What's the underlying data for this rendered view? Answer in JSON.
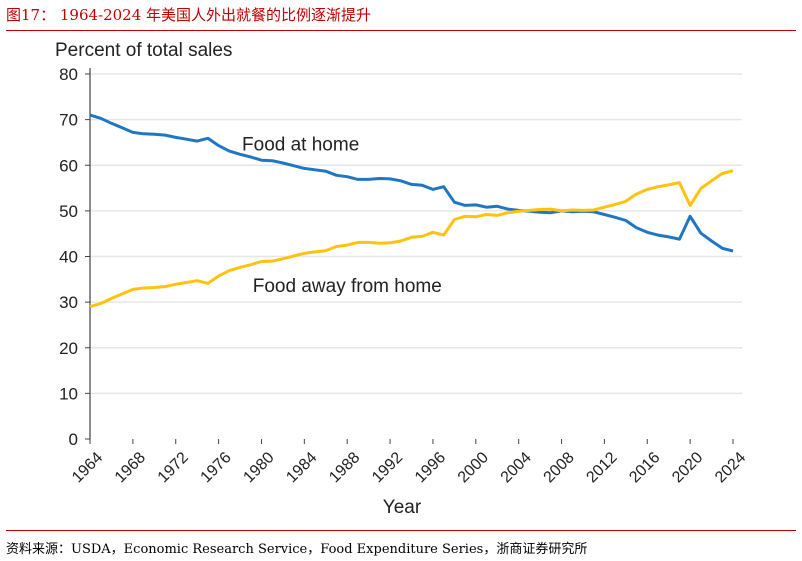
{
  "title": "图17：  1964-2024 年美国人外出就餐的比例逐渐提升",
  "source": "资料来源：USDA，Economic Research Service，Food Expenditure Series，浙商证券研究所",
  "chart_data": {
    "type": "line",
    "ylabel": "Percent of total sales",
    "xlabel": "Year",
    "ylim": [
      0,
      80
    ],
    "xlim": [
      1964,
      2024
    ],
    "yticks": [
      0,
      10,
      20,
      30,
      40,
      50,
      60,
      70,
      80
    ],
    "xticks": [
      1964,
      1968,
      1972,
      1976,
      1980,
      1984,
      1988,
      1992,
      1996,
      2000,
      2004,
      2008,
      2012,
      2016,
      2020,
      2024
    ],
    "grid": "horizontal",
    "x": [
      1964,
      1965,
      1966,
      1967,
      1968,
      1969,
      1970,
      1971,
      1972,
      1973,
      1974,
      1975,
      1976,
      1977,
      1978,
      1979,
      1980,
      1981,
      1982,
      1983,
      1984,
      1985,
      1986,
      1987,
      1988,
      1989,
      1990,
      1991,
      1992,
      1993,
      1994,
      1995,
      1996,
      1997,
      1998,
      1999,
      2000,
      2001,
      2002,
      2003,
      2004,
      2005,
      2006,
      2007,
      2008,
      2009,
      2010,
      2011,
      2012,
      2013,
      2014,
      2015,
      2016,
      2017,
      2018,
      2019,
      2020,
      2021,
      2022,
      2023,
      2024
    ],
    "series": [
      {
        "name": "Food at home",
        "color": "#1f77c4",
        "values": [
          71.0,
          70.3,
          69.2,
          68.2,
          67.2,
          66.9,
          66.8,
          66.6,
          66.1,
          65.7,
          65.3,
          65.9,
          64.3,
          63.1,
          62.4,
          61.8,
          61.1,
          61.0,
          60.5,
          59.9,
          59.3,
          59.0,
          58.7,
          57.8,
          57.5,
          56.9,
          56.9,
          57.1,
          57.0,
          56.6,
          55.8,
          55.6,
          54.7,
          55.3,
          51.9,
          51.2,
          51.3,
          50.8,
          51.0,
          50.4,
          50.1,
          49.9,
          49.7,
          49.6,
          50.0,
          49.8,
          49.9,
          49.8,
          49.2,
          48.6,
          47.9,
          46.3,
          45.3,
          44.7,
          44.3,
          43.8,
          48.8,
          45.1,
          43.4,
          41.8,
          41.2
        ]
      },
      {
        "name": "Food away from home",
        "color": "#ffc20e",
        "values": [
          29.0,
          29.7,
          30.8,
          31.8,
          32.8,
          33.1,
          33.2,
          33.4,
          33.9,
          34.3,
          34.7,
          34.1,
          35.7,
          36.9,
          37.6,
          38.2,
          38.9,
          39.0,
          39.5,
          40.1,
          40.7,
          41.0,
          41.3,
          42.2,
          42.5,
          43.1,
          43.1,
          42.9,
          43.0,
          43.4,
          44.2,
          44.4,
          45.3,
          44.7,
          48.1,
          48.8,
          48.7,
          49.2,
          49.0,
          49.6,
          49.9,
          50.1,
          50.3,
          50.4,
          50.0,
          50.2,
          50.1,
          50.2,
          50.8,
          51.4,
          52.1,
          53.7,
          54.7,
          55.3,
          55.7,
          56.2,
          51.2,
          54.9,
          56.6,
          58.2,
          58.8
        ]
      }
    ],
    "annotations": [
      {
        "text": "Food at home",
        "x": 1978,
        "y": 64.5
      },
      {
        "text": "Food away from home",
        "x": 1979,
        "y": 33.5
      }
    ]
  }
}
